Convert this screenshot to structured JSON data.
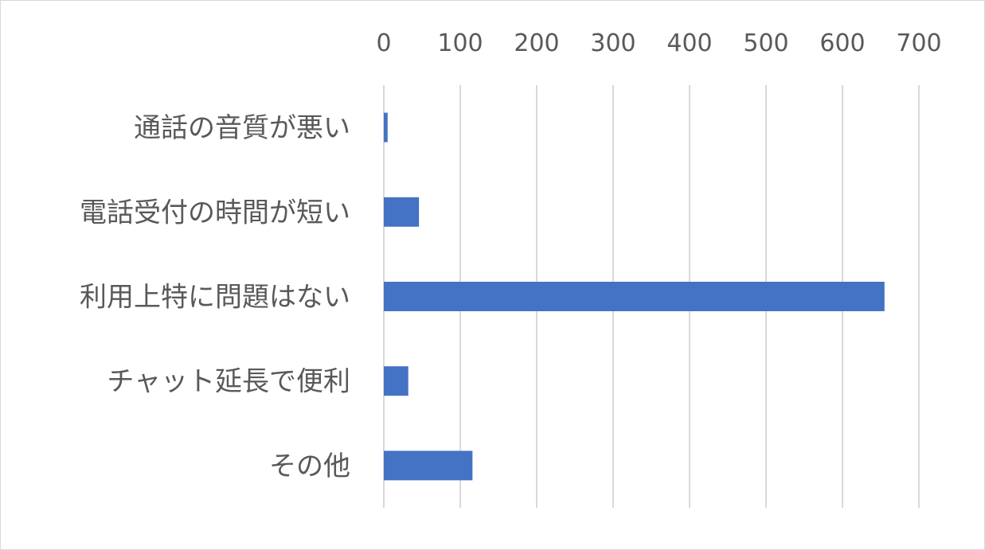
{
  "chart_data": {
    "type": "bar",
    "orientation": "horizontal",
    "categories": [
      "通話の音質が悪い",
      "電話受付の時間が短い",
      "利用上特に問題はない",
      "チャット延長で便利",
      "その他"
    ],
    "values": [
      5,
      46,
      655,
      32,
      116
    ],
    "xlim": [
      0,
      700
    ],
    "xticks": [
      0,
      100,
      200,
      300,
      400,
      500,
      600,
      700
    ],
    "x_axis_position": "top",
    "grid": true,
    "legend": "none",
    "colors": {
      "bar": "#4472C4",
      "grid": "#d9d9d9",
      "text": "#595959"
    }
  }
}
